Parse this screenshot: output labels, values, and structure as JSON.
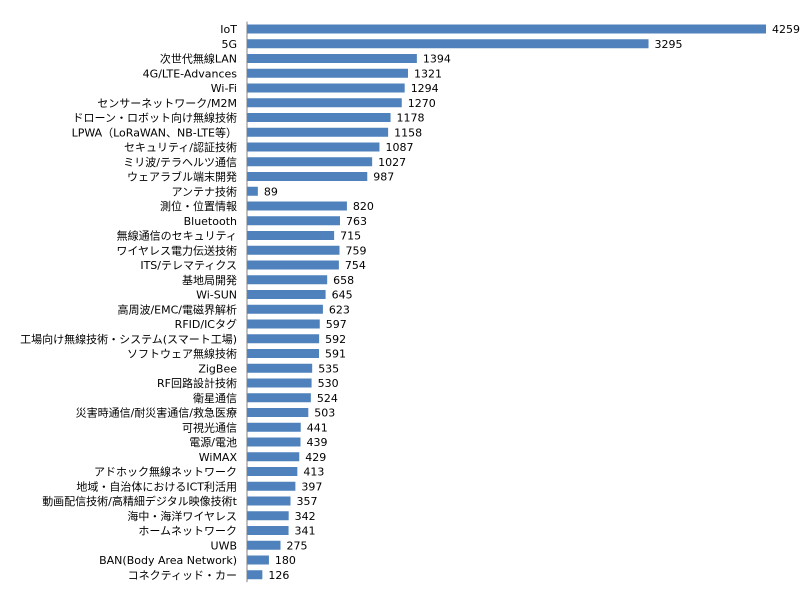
{
  "chart_data": {
    "type": "bar",
    "orientation": "horizontal",
    "title": "",
    "xlabel": "",
    "ylabel": "",
    "xlim": [
      0,
      4259
    ],
    "grid": false,
    "legend": "none",
    "bar_color": "#4F81BD",
    "axis_color": "#808080",
    "categories": [
      "IoT",
      "5G",
      "次世代無線LAN",
      "4G/LTE-Advances",
      "Wi-Fi",
      "センサーネットワーク/M2M",
      "ドローン・ロボット向け無線技術",
      "LPWA（LoRaWAN、NB-LTE等）",
      "セキュリティ/認証技術",
      "ミリ波/テラヘルツ通信",
      "ウェアラブル端末開発",
      "アンテナ技術",
      "測位・位置情報",
      "Bluetooth",
      "無線通信のセキュリティ",
      "ワイヤレス電力伝送技術",
      "ITS/テレマティクス",
      "基地局開発",
      "Wi-SUN",
      "高周波/EMC/電磁界解析",
      "RFID/ICタグ",
      "工場向け無線技術・システム(スマート工場)",
      "ソフトウェア無線技術",
      "ZigBee",
      "RF回路設計技術",
      "衛星通信",
      "災害時通信/耐災害通信/救急医療",
      "可視光通信",
      "電源/電池",
      "WiMAX",
      "アドホック無線ネットワーク",
      "地域・自治体におけるICT利活用",
      "動画配信技術/高精細デジタル映像技術t",
      "海中・海洋ワイヤレス",
      "ホームネットワーク",
      "UWB",
      "BAN(Body Area Network)",
      "コネクティッド・カー"
    ],
    "values": [
      4259,
      3295,
      1394,
      1321,
      1294,
      1270,
      1178,
      1158,
      1087,
      1027,
      987,
      89,
      820,
      763,
      715,
      759,
      754,
      658,
      645,
      623,
      597,
      592,
      591,
      535,
      530,
      524,
      503,
      441,
      439,
      429,
      413,
      397,
      357,
      342,
      341,
      275,
      180,
      126
    ]
  }
}
